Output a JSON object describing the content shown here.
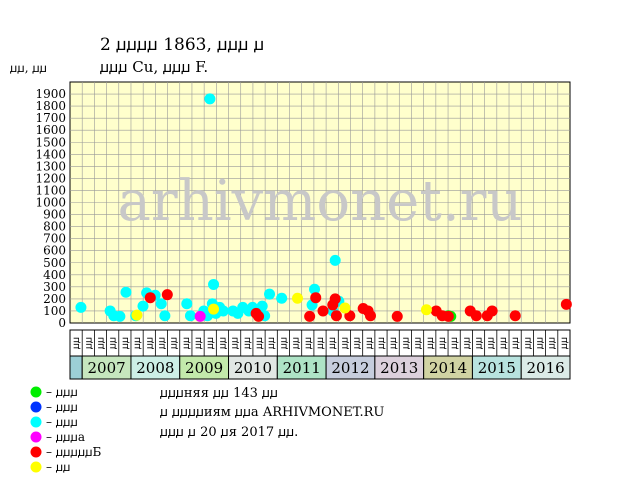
{
  "header": {
    "title": "2 ꙡꙡꙡꙡ 1863, ꙡꙡꙡ ꙡ",
    "subtitle": "ꙡꙡꙡ Cu, ꙡꙡꙡ F.",
    "y_unit": "ꙡꙡ, ꙡꙡ"
  },
  "watermark": "arhivmonet.ru",
  "legend": [
    {
      "label": "– ꙡꙡꙡ",
      "color": "#00ee00"
    },
    {
      "label": "– ꙡꙡꙡ",
      "color": "#0033ff"
    },
    {
      "label": "– ꙡꙡꙡ",
      "color": "#00ffff"
    },
    {
      "label": "– ꙡꙡꙡa",
      "color": "#ff00ff"
    },
    {
      "label": "– ꙡꙡꙡꙡꙡБ",
      "color": "#ff0000"
    },
    {
      "label": "– ꙡꙡ",
      "color": "#ffff00"
    }
  ],
  "notes": [
    "ꙡꙡꙡняя ꙡꙡ 143 ꙡꙡ",
    "ꙡ ꙡꙡꙡꙡиям ꙡꙡa ARHIVMONET.RU",
    "ꙡꙡꙡ ꙡ 20 ꙡя 2017 ꙡꙡ."
  ],
  "chart_data": {
    "type": "scatter",
    "ylim": [
      0,
      2000
    ],
    "yticks": [
      0,
      100,
      200,
      300,
      400,
      500,
      600,
      700,
      800,
      900,
      1000,
      1100,
      1200,
      1300,
      1400,
      1500,
      1600,
      1700,
      1800,
      1900
    ],
    "grid": true,
    "xlim": [
      -0.8,
      40.3
    ],
    "quarter_labels": [
      "ꙡꙡ",
      "ꙡꙡ",
      "ꙡꙡ",
      "ꙡꙡ",
      "ꙡꙡ",
      "ꙡꙡ",
      "ꙡꙡ",
      "ꙡꙡ",
      "ꙡꙡ",
      "ꙡꙡ",
      "ꙡꙡ",
      "ꙡꙡ",
      "ꙡꙡ",
      "ꙡꙡ",
      "ꙡꙡ",
      "ꙡꙡ",
      "ꙡꙡ",
      "ꙡꙡ",
      "ꙡꙡ",
      "ꙡꙡ",
      "ꙡꙡ",
      "ꙡꙡ",
      "ꙡꙡ",
      "ꙡꙡ",
      "ꙡꙡ",
      "ꙡꙡ",
      "ꙡꙡ",
      "ꙡꙡ",
      "ꙡꙡ",
      "ꙡꙡ",
      "ꙡꙡ",
      "ꙡꙡ",
      "ꙡꙡ",
      "ꙡꙡ",
      "ꙡꙡ",
      "ꙡꙡ",
      "ꙡꙡ",
      "ꙡꙡ",
      "ꙡꙡ",
      "ꙡꙡ",
      "ꙡꙡ"
    ],
    "years": [
      {
        "label": "",
        "start": 0,
        "end": 1,
        "color": "#9ccfd6"
      },
      {
        "label": "2007",
        "start": 1,
        "end": 5,
        "color": "#c6e6be"
      },
      {
        "label": "2008",
        "start": 5,
        "end": 9,
        "color": "#cdefe6"
      },
      {
        "label": "2009",
        "start": 9,
        "end": 13,
        "color": "#c3e9ab"
      },
      {
        "label": "2010",
        "start": 13,
        "end": 17,
        "color": "#e1e7e4"
      },
      {
        "label": "2011",
        "start": 17,
        "end": 21,
        "color": "#aee3c6"
      },
      {
        "label": "2012",
        "start": 21,
        "end": 25,
        "color": "#c6cddd"
      },
      {
        "label": "2013",
        "start": 25,
        "end": 29,
        "color": "#dcd0dc"
      },
      {
        "label": "2014",
        "start": 29,
        "end": 33,
        "color": "#d1d3a3"
      },
      {
        "label": "2015",
        "start": 33,
        "end": 37,
        "color": "#b8e3df"
      },
      {
        "label": "2016",
        "start": 37,
        "end": 41,
        "color": "#dbebe7"
      }
    ],
    "series": [
      {
        "name": "– ꙡꙡꙡ",
        "color": "#00ee00",
        "points": [
          [
            30.3,
            60
          ],
          [
            30.5,
            55
          ]
        ]
      },
      {
        "name": "– ꙡꙡꙡ",
        "color": "#0033ff",
        "points": []
      },
      {
        "name": "– ꙡꙡꙡ",
        "color": "#00ffff",
        "points": [
          [
            0.1,
            130
          ],
          [
            2.5,
            100
          ],
          [
            2.8,
            60
          ],
          [
            3.3,
            55
          ],
          [
            3.8,
            255
          ],
          [
            4.6,
            60
          ],
          [
            5.2,
            140
          ],
          [
            5.5,
            250
          ],
          [
            6.2,
            230
          ],
          [
            6.7,
            160
          ],
          [
            7.0,
            60
          ],
          [
            8.8,
            160
          ],
          [
            9.1,
            60
          ],
          [
            10.2,
            100
          ],
          [
            10.5,
            60
          ],
          [
            10.7,
            1860
          ],
          [
            10.9,
            160
          ],
          [
            11.0,
            320
          ],
          [
            11.2,
            80
          ],
          [
            11.5,
            130
          ],
          [
            11.8,
            100
          ],
          [
            12.6,
            100
          ],
          [
            13.0,
            80
          ],
          [
            13.4,
            130
          ],
          [
            13.9,
            100
          ],
          [
            14.2,
            130
          ],
          [
            14.6,
            100
          ],
          [
            15.0,
            140
          ],
          [
            15.2,
            60
          ],
          [
            15.6,
            240
          ],
          [
            16.6,
            205
          ],
          [
            19.1,
            150
          ],
          [
            19.3,
            280
          ],
          [
            20.8,
            100
          ],
          [
            21.0,
            520
          ],
          [
            21.3,
            180
          ]
        ]
      },
      {
        "name": "– ꙡꙡꙡa",
        "color": "#ff00ff",
        "points": [
          [
            9.9,
            55
          ]
        ]
      },
      {
        "name": "– ꙡꙡꙡꙡꙡБ",
        "color": "#ff0000",
        "points": [
          [
            5.8,
            210
          ],
          [
            7.2,
            235
          ],
          [
            14.5,
            80
          ],
          [
            14.7,
            55
          ],
          [
            18.9,
            55
          ],
          [
            19.4,
            210
          ],
          [
            20.0,
            100
          ],
          [
            20.8,
            150
          ],
          [
            21.0,
            200
          ],
          [
            21.1,
            60
          ],
          [
            22.2,
            60
          ],
          [
            23.3,
            120
          ],
          [
            23.7,
            100
          ],
          [
            23.9,
            60
          ],
          [
            26.1,
            55
          ],
          [
            29.3,
            100
          ],
          [
            29.8,
            60
          ],
          [
            30.3,
            55
          ],
          [
            32.1,
            100
          ],
          [
            32.6,
            60
          ],
          [
            33.5,
            60
          ],
          [
            33.9,
            100
          ],
          [
            35.8,
            60
          ],
          [
            40.0,
            155
          ]
        ]
      },
      {
        "name": "– ꙡꙡ",
        "color": "#ffff00",
        "points": [
          [
            4.7,
            65
          ],
          [
            11.0,
            115
          ],
          [
            17.9,
            205
          ],
          [
            21.8,
            125
          ],
          [
            28.5,
            110
          ]
        ]
      }
    ]
  }
}
